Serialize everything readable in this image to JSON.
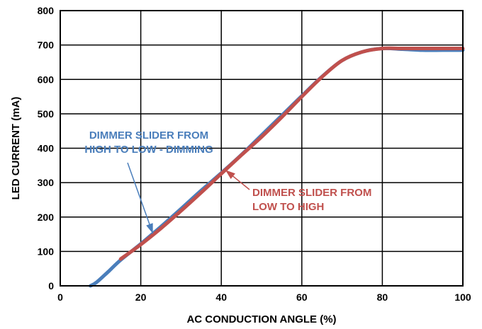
{
  "chart_data": {
    "type": "line",
    "title": "",
    "xlabel": "AC CONDUCTION ANGLE (%)",
    "ylabel": "LED CURRENT (mA)",
    "xlim": [
      0,
      100
    ],
    "ylim": [
      0,
      800
    ],
    "xticks": [
      "0",
      "20",
      "40",
      "60",
      "80",
      "100"
    ],
    "yticks": [
      "0",
      "100",
      "200",
      "300",
      "400",
      "500",
      "600",
      "700",
      "800"
    ],
    "grid": true,
    "series": [
      {
        "name": "DIMMER SLIDER FROM HIGH TO LOW - DIMMING",
        "color": "#4a7ebb",
        "x": [
          7.5,
          9,
          12,
          15,
          20,
          25,
          30,
          35,
          40,
          45,
          50,
          55,
          60,
          65,
          70,
          75,
          80,
          85,
          90,
          95,
          100
        ],
        "y": [
          0,
          10,
          42,
          75,
          122,
          172,
          224,
          277,
          328,
          381,
          438,
          495,
          552,
          608,
          655,
          680,
          690,
          688,
          685,
          685,
          685
        ]
      },
      {
        "name": "DIMMER SLIDER FROM LOW TO HIGH",
        "color": "#c0504d",
        "x": [
          15,
          20,
          25,
          30,
          35,
          40,
          45,
          50,
          55,
          60,
          65,
          70,
          75,
          80,
          85,
          90,
          95,
          100
        ],
        "y": [
          78,
          120,
          167,
          218,
          271,
          326,
          380,
          433,
          490,
          550,
          607,
          655,
          680,
          690,
          690,
          690,
          690,
          690
        ]
      }
    ],
    "annotations": [
      {
        "lines": [
          "DIMMER SLIDER FROM",
          "HIGH TO LOW - DIMMING"
        ],
        "color": "#4a7ebb",
        "series": 0
      },
      {
        "lines": [
          "DIMMER SLIDER FROM",
          "LOW TO HIGH"
        ],
        "color": "#c0504d",
        "series": 1
      }
    ]
  }
}
